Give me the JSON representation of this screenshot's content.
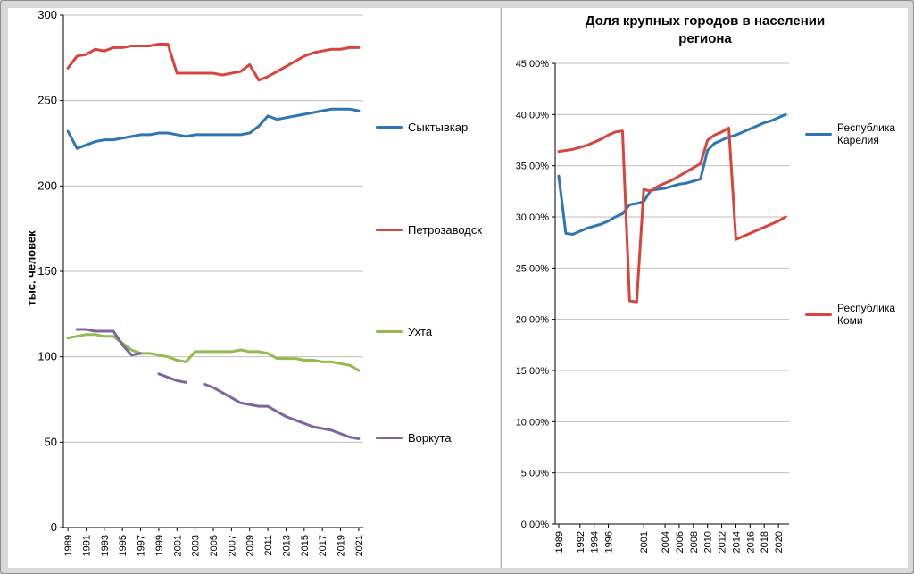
{
  "page": {
    "background": "#d9d9d9",
    "panel_background": "#ffffff",
    "gridline_color": "#bfbfbf",
    "axis_color": "#000000"
  },
  "chart_data": [
    {
      "type": "line",
      "title": "",
      "ylabel": "тыс. человек",
      "ylim": [
        0,
        300
      ],
      "yticks": [
        0,
        50,
        100,
        150,
        200,
        250,
        300
      ],
      "ytick_labels": [
        "0",
        "50",
        "100",
        "150",
        "200",
        "250",
        "300"
      ],
      "grid": "horizontal",
      "legend_position": "right",
      "x": [
        1989,
        1990,
        1991,
        1992,
        1993,
        1994,
        1995,
        1996,
        1997,
        1998,
        1999,
        2000,
        2001,
        2002,
        2003,
        2004,
        2005,
        2006,
        2007,
        2008,
        2009,
        2010,
        2011,
        2012,
        2013,
        2014,
        2015,
        2016,
        2017,
        2018,
        2019,
        2020,
        2021
      ],
      "xtick_years": [
        1989,
        1991,
        1993,
        1995,
        1997,
        1999,
        2001,
        2003,
        2005,
        2007,
        2009,
        2011,
        2013,
        2015,
        2017,
        2019,
        2021
      ],
      "series": [
        {
          "name": "Сыктывкар",
          "color": "#2E75B6",
          "values": [
            232,
            222,
            224,
            226,
            227,
            227,
            228,
            229,
            230,
            230,
            231,
            231,
            230,
            229,
            230,
            230,
            230,
            230,
            230,
            230,
            231,
            235,
            241,
            239,
            240,
            241,
            242,
            243,
            244,
            245,
            245,
            245,
            244
          ]
        },
        {
          "name": "Петрозаводск",
          "color": "#D8443C",
          "values": [
            269,
            276,
            277,
            280,
            279,
            281,
            281,
            282,
            282,
            282,
            283,
            283,
            266,
            266,
            266,
            266,
            266,
            265,
            266,
            267,
            271,
            262,
            264,
            267,
            270,
            273,
            276,
            278,
            279,
            280,
            280,
            281,
            281
          ]
        },
        {
          "name": "Ухта",
          "color": "#93BA4D",
          "values": [
            111,
            112,
            113,
            113,
            112,
            112,
            108,
            104,
            102,
            102,
            101,
            100,
            98,
            97,
            103,
            103,
            103,
            103,
            103,
            104,
            103,
            103,
            102,
            99,
            99,
            99,
            98,
            98,
            97,
            97,
            96,
            95,
            92
          ]
        },
        {
          "name": "Воркута",
          "color": "#8064A2",
          "values": [
            null,
            116,
            116,
            115,
            115,
            115,
            107,
            101,
            102,
            null,
            90,
            88,
            86,
            85,
            null,
            84,
            82,
            79,
            76,
            73,
            72,
            71,
            71,
            68,
            65,
            63,
            61,
            59,
            58,
            57,
            55,
            53,
            52
          ]
        }
      ]
    },
    {
      "type": "line",
      "title": "Доля крупных городов в населении региона",
      "ylabel": "",
      "ylim": [
        0,
        45
      ],
      "yticks": [
        0,
        5,
        10,
        15,
        20,
        25,
        30,
        35,
        40,
        45
      ],
      "ytick_labels": [
        "0,00%",
        "5,00%",
        "10,00%",
        "15,00%",
        "20,00%",
        "25,00%",
        "30,00%",
        "35,00%",
        "40,00%",
        "45,00%"
      ],
      "grid": "horizontal",
      "legend_position": "right",
      "x": [
        1989,
        1990,
        1991,
        1992,
        1993,
        1994,
        1995,
        1996,
        1997,
        1998,
        1999,
        2000,
        2001,
        2002,
        2003,
        2004,
        2005,
        2006,
        2007,
        2008,
        2009,
        2010,
        2011,
        2012,
        2013,
        2014,
        2015,
        2016,
        2017,
        2018,
        2019,
        2020,
        2021
      ],
      "xtick_years": [
        1989,
        1992,
        1994,
        1996,
        2001,
        2004,
        2006,
        2008,
        2010,
        2012,
        2014,
        2016,
        2018,
        2020
      ],
      "series": [
        {
          "name": "Республика Карелия",
          "color": "#2E75B6",
          "values": [
            34.0,
            28.4,
            28.3,
            28.6,
            28.9,
            29.1,
            29.3,
            29.6,
            30.0,
            30.3,
            31.2,
            31.3,
            31.5,
            32.6,
            32.7,
            32.8,
            33.0,
            33.2,
            33.3,
            33.5,
            33.7,
            36.5,
            37.2,
            37.5,
            37.8,
            38.0,
            38.3,
            38.6,
            38.9,
            39.2,
            39.4,
            39.7,
            40.0
          ]
        },
        {
          "name": "Республика Коми",
          "color": "#D8443C",
          "values": [
            36.4,
            36.5,
            36.6,
            36.8,
            37.0,
            37.3,
            37.6,
            38.0,
            38.3,
            38.4,
            21.8,
            21.7,
            32.7,
            32.5,
            33.0,
            33.3,
            33.6,
            34.0,
            34.4,
            34.8,
            35.2,
            37.5,
            38.0,
            38.3,
            38.7,
            27.8,
            28.1,
            28.4,
            28.7,
            29.0,
            29.3,
            29.6,
            30.0
          ]
        }
      ]
    }
  ]
}
